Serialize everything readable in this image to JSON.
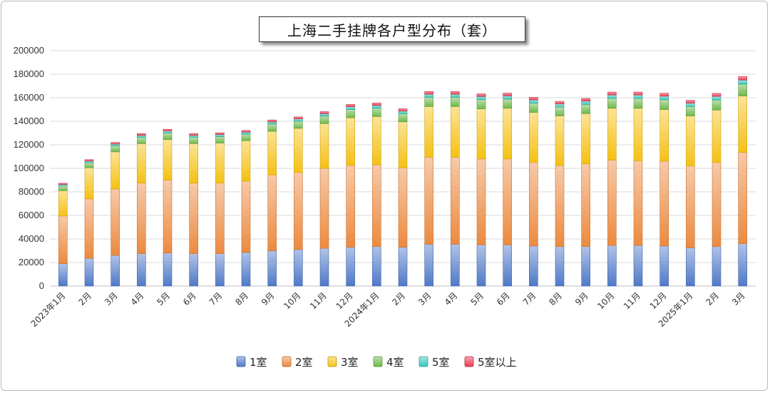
{
  "chart_data": {
    "type": "bar",
    "stacked": true,
    "title": "上海二手挂牌各户型分布（套）",
    "categories": [
      "2023年1月",
      "2月",
      "3月",
      "4月",
      "5月",
      "6月",
      "7月",
      "8月",
      "9月",
      "10月",
      "11月",
      "12月",
      "2024年1月",
      "2月",
      "3月",
      "4月",
      "5月",
      "6月",
      "7月",
      "8月",
      "9月",
      "10月",
      "11月",
      "12月",
      "2025年1月",
      "2月",
      "3月"
    ],
    "ylim": [
      0,
      200000
    ],
    "yticks": [
      "0",
      "20000",
      "40000",
      "60000",
      "80000",
      "100000",
      "120000",
      "140000",
      "160000",
      "180000",
      "200000"
    ],
    "legend_position": "bottom",
    "grid": true,
    "series": [
      {
        "name": "1室",
        "color": "#4f79c8",
        "values": [
          19000,
          23500,
          26000,
          27500,
          28000,
          27500,
          27500,
          28500,
          30000,
          31000,
          32000,
          33000,
          33500,
          33000,
          35500,
          35500,
          35000,
          35000,
          34000,
          33500,
          33500,
          34500,
          34500,
          34000,
          32500,
          33500,
          36000
        ]
      },
      {
        "name": "2室",
        "color": "#ec8a3f",
        "values": [
          40500,
          50500,
          56500,
          60000,
          62000,
          60000,
          60000,
          60500,
          64500,
          65500,
          68000,
          69500,
          69500,
          67500,
          74000,
          74000,
          73000,
          73000,
          71000,
          69000,
          70500,
          72500,
          72000,
          72000,
          69500,
          71500,
          77500
        ]
      },
      {
        "name": "3室",
        "color": "#f5c115",
        "values": [
          21500,
          26500,
          31500,
          33500,
          34500,
          33500,
          34000,
          34500,
          37000,
          37500,
          38000,
          40500,
          41000,
          39000,
          43000,
          43000,
          42500,
          43000,
          42500,
          42000,
          42500,
          44000,
          44500,
          44000,
          42500,
          44500,
          48000
        ]
      },
      {
        "name": "4室",
        "color": "#6eb84b",
        "values": [
          4000,
          4300,
          5000,
          5300,
          5500,
          5300,
          5500,
          5500,
          6000,
          6000,
          6300,
          7000,
          7000,
          6800,
          7800,
          7800,
          7800,
          7800,
          7800,
          7500,
          7800,
          8300,
          8300,
          8300,
          8000,
          8500,
          10000
        ]
      },
      {
        "name": "5室",
        "color": "#39c5bb",
        "values": [
          1300,
          1400,
          1600,
          1700,
          1700,
          1700,
          1700,
          1700,
          1900,
          2000,
          2100,
          2300,
          2400,
          2300,
          2700,
          2700,
          2700,
          2800,
          2800,
          2700,
          2800,
          3000,
          3000,
          3000,
          2900,
          3100,
          3500
        ]
      },
      {
        "name": "5室以上",
        "color": "#e8384f",
        "values": [
          1000,
          1200,
          1400,
          1500,
          1500,
          1500,
          1500,
          1500,
          1700,
          1700,
          1800,
          2000,
          2100,
          2000,
          2300,
          2300,
          2300,
          2300,
          2300,
          2200,
          2300,
          2500,
          2500,
          2500,
          2400,
          2600,
          3000
        ]
      }
    ]
  }
}
